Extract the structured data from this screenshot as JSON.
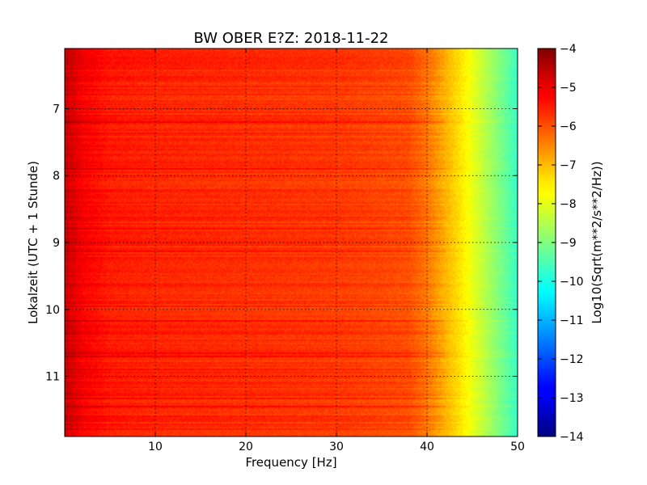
{
  "chart_data": {
    "type": "heatmap",
    "title": "BW OBER E?Z: 2018-11-22",
    "xlabel": "Frequency [Hz]",
    "ylabel": "Lokalzeit (UTC + 1 Stunde)",
    "xlim": [
      0,
      50
    ],
    "ylim": [
      6.1,
      11.9
    ],
    "x_ticks": [
      10,
      20,
      30,
      40,
      50
    ],
    "x_tick_labels": [
      "10",
      "20",
      "30",
      "40",
      "50"
    ],
    "y_ticks": [
      7,
      8,
      9,
      10,
      11
    ],
    "y_tick_labels": [
      "7",
      "8",
      "9",
      "10",
      "11"
    ],
    "y_inverted": true,
    "grid": true,
    "colormap": "jet",
    "colorbar": {
      "label": "Log10(Sqrt(m**2/s**2/Hz))",
      "range": [
        -14,
        -4
      ],
      "ticks": [
        -4,
        -5,
        -6,
        -7,
        -8,
        -9,
        -10,
        -11,
        -12,
        -13,
        -14
      ],
      "tick_labels": [
        "−4",
        "−5",
        "−6",
        "−7",
        "−8",
        "−9",
        "−10",
        "−11",
        "−12",
        "−13",
        "−14"
      ]
    },
    "spectrum_profile": {
      "frequency_hz": [
        0,
        2,
        5,
        10,
        20,
        30,
        38,
        40,
        42,
        44,
        46,
        48,
        50
      ],
      "log10_amplitude": [
        -4.7,
        -5.2,
        -5.5,
        -5.6,
        -5.7,
        -5.8,
        -6.0,
        -6.4,
        -7.0,
        -7.6,
        -8.3,
        -9.0,
        -9.7
      ]
    }
  }
}
